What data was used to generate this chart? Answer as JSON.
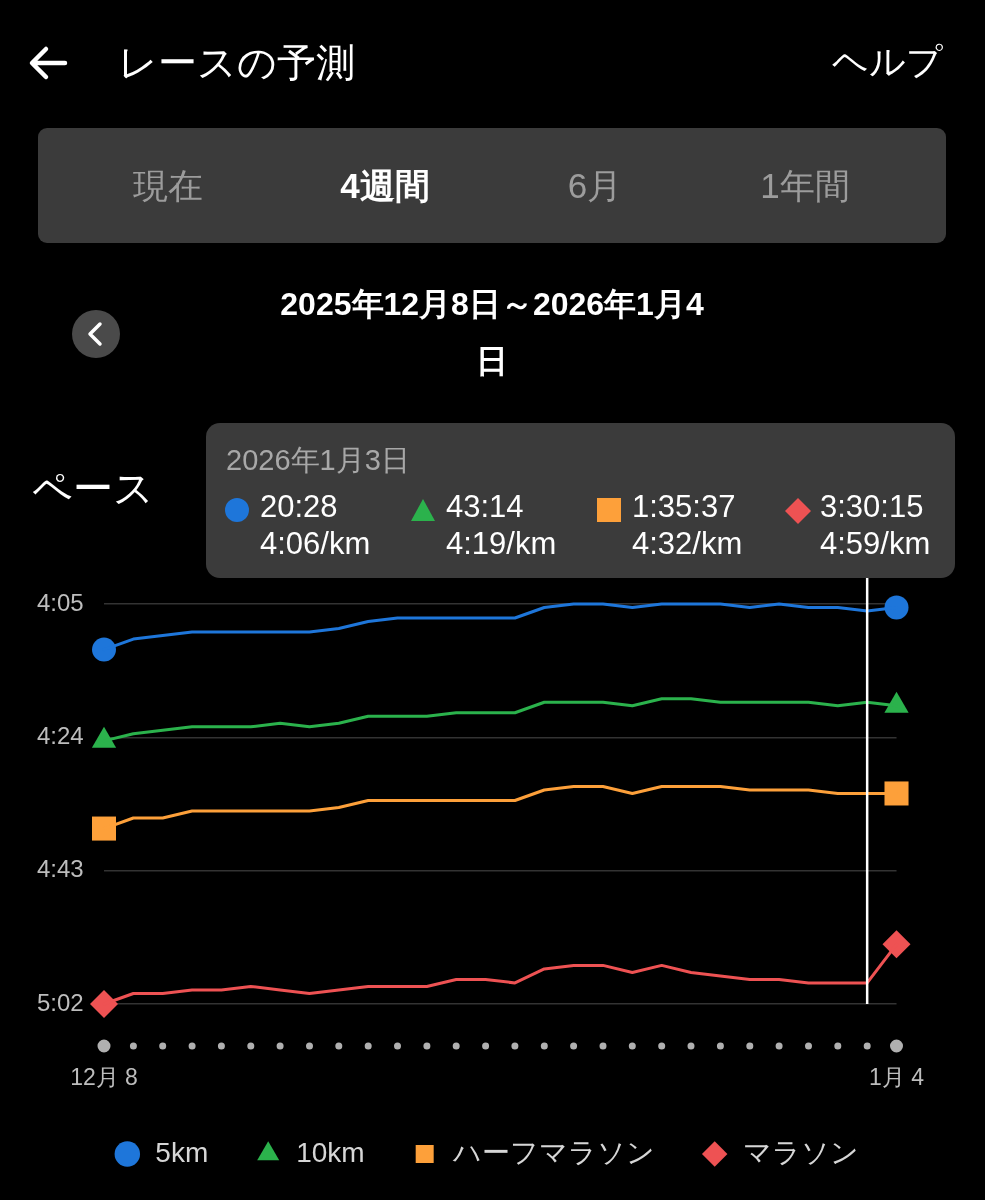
{
  "chart_data": {
    "type": "line",
    "title": "レースの予測",
    "subtitle": "2025年12月8日～2026年1月4日",
    "ylabel": "ペース",
    "annotations": [
      "ヘルプ",
      "現在",
      "4週間",
      "6月",
      "1年間",
      "2026年1月3日",
      "20:28",
      "4:06/km",
      "43:14",
      "4:19/km",
      "1:35:37",
      "4:32/km",
      "3:30:15",
      "4:59/km"
    ],
    "x": [
      "2025-12-08",
      "2025-12-09",
      "2025-12-10",
      "2025-12-11",
      "2025-12-12",
      "2025-12-13",
      "2025-12-14",
      "2025-12-15",
      "2025-12-16",
      "2025-12-17",
      "2025-12-18",
      "2025-12-19",
      "2025-12-20",
      "2025-12-21",
      "2025-12-22",
      "2025-12-23",
      "2025-12-24",
      "2025-12-25",
      "2025-12-26",
      "2025-12-27",
      "2025-12-28",
      "2025-12-29",
      "2025-12-30",
      "2025-12-31",
      "2026-01-01",
      "2026-01-02",
      "2026-01-03",
      "2026-01-04"
    ],
    "series": [
      {
        "name": "5km",
        "color": "#1e76da",
        "values": [
          251.5,
          250,
          249.5,
          249,
          249,
          249,
          249,
          249,
          248.5,
          247.5,
          247,
          247,
          247,
          247,
          247,
          245.5,
          245,
          245,
          245.5,
          245,
          245,
          245,
          245.5,
          245,
          245.5,
          245.5,
          246,
          245.5
        ]
      },
      {
        "name": "10km",
        "color": "#2bb24c",
        "values": [
          264.5,
          263.5,
          263,
          262.5,
          262.5,
          262.5,
          262,
          262.5,
          262,
          261,
          261,
          261,
          260.5,
          260.5,
          260.5,
          259,
          259,
          259,
          259.5,
          258.5,
          258.5,
          259,
          259,
          259,
          259,
          259.5,
          259,
          259.5
        ]
      },
      {
        "name": "ハーフマラソン",
        "color": "#fda03a",
        "values": [
          277,
          275.5,
          275.5,
          274.5,
          274.5,
          274.5,
          274.5,
          274.5,
          274,
          273,
          273,
          273,
          273,
          273,
          273,
          271.5,
          271,
          271,
          272,
          271,
          271,
          271,
          271.5,
          271.5,
          271.5,
          272,
          272,
          272
        ]
      },
      {
        "name": "マラソン",
        "color": "#ee5253",
        "values": [
          302,
          300.5,
          300.5,
          300,
          300,
          299.5,
          300,
          300.5,
          300,
          299.5,
          299.5,
          299.5,
          298.5,
          298.5,
          299,
          297,
          296.5,
          296.5,
          297.5,
          296.5,
          297.5,
          298,
          298.5,
          298.5,
          299,
          299,
          299,
          293.5
        ]
      },
      {
        "type": "scatter",
        "color": "#1e76da",
        "marker": "circle",
        "x": [
          "2025-12-08",
          "2026-01-04"
        ],
        "values": [
          251.5,
          245.5
        ]
      },
      {
        "type": "scatter",
        "color": "#2bb24c",
        "marker": "triangle",
        "x": [
          "2025-12-08",
          "2026-01-04"
        ],
        "values": [
          264.5,
          259.5
        ]
      },
      {
        "type": "scatter",
        "color": "#fda03a",
        "marker": "square",
        "x": [
          "2025-12-08",
          "2026-01-04"
        ],
        "values": [
          277,
          272
        ]
      },
      {
        "type": "scatter",
        "color": "#ee5253",
        "marker": "diamond",
        "x": [
          "2025-12-08",
          "2026-01-04"
        ],
        "values": [
          302,
          293.5
        ]
      }
    ],
    "xlim": [
      "2025-12-08",
      "2026-01-04"
    ],
    "xticks": [
      {
        "value": "2025-12-08",
        "label": "12月 8"
      },
      {
        "value": "2026-01-04",
        "label": "1月 4"
      }
    ],
    "ylim": [
      302,
      245
    ],
    "yticks": [
      {
        "value": 245,
        "label": "4:05"
      },
      {
        "value": 264,
        "label": "4:24"
      },
      {
        "value": 283,
        "label": "4:43"
      },
      {
        "value": 302,
        "label": "5:02"
      }
    ],
    "grid": "y",
    "legend": "bottom",
    "ref_lines": [
      {
        "axis": "x",
        "value": "2026-01-03",
        "color": "#ffffff"
      }
    ]
  }
}
